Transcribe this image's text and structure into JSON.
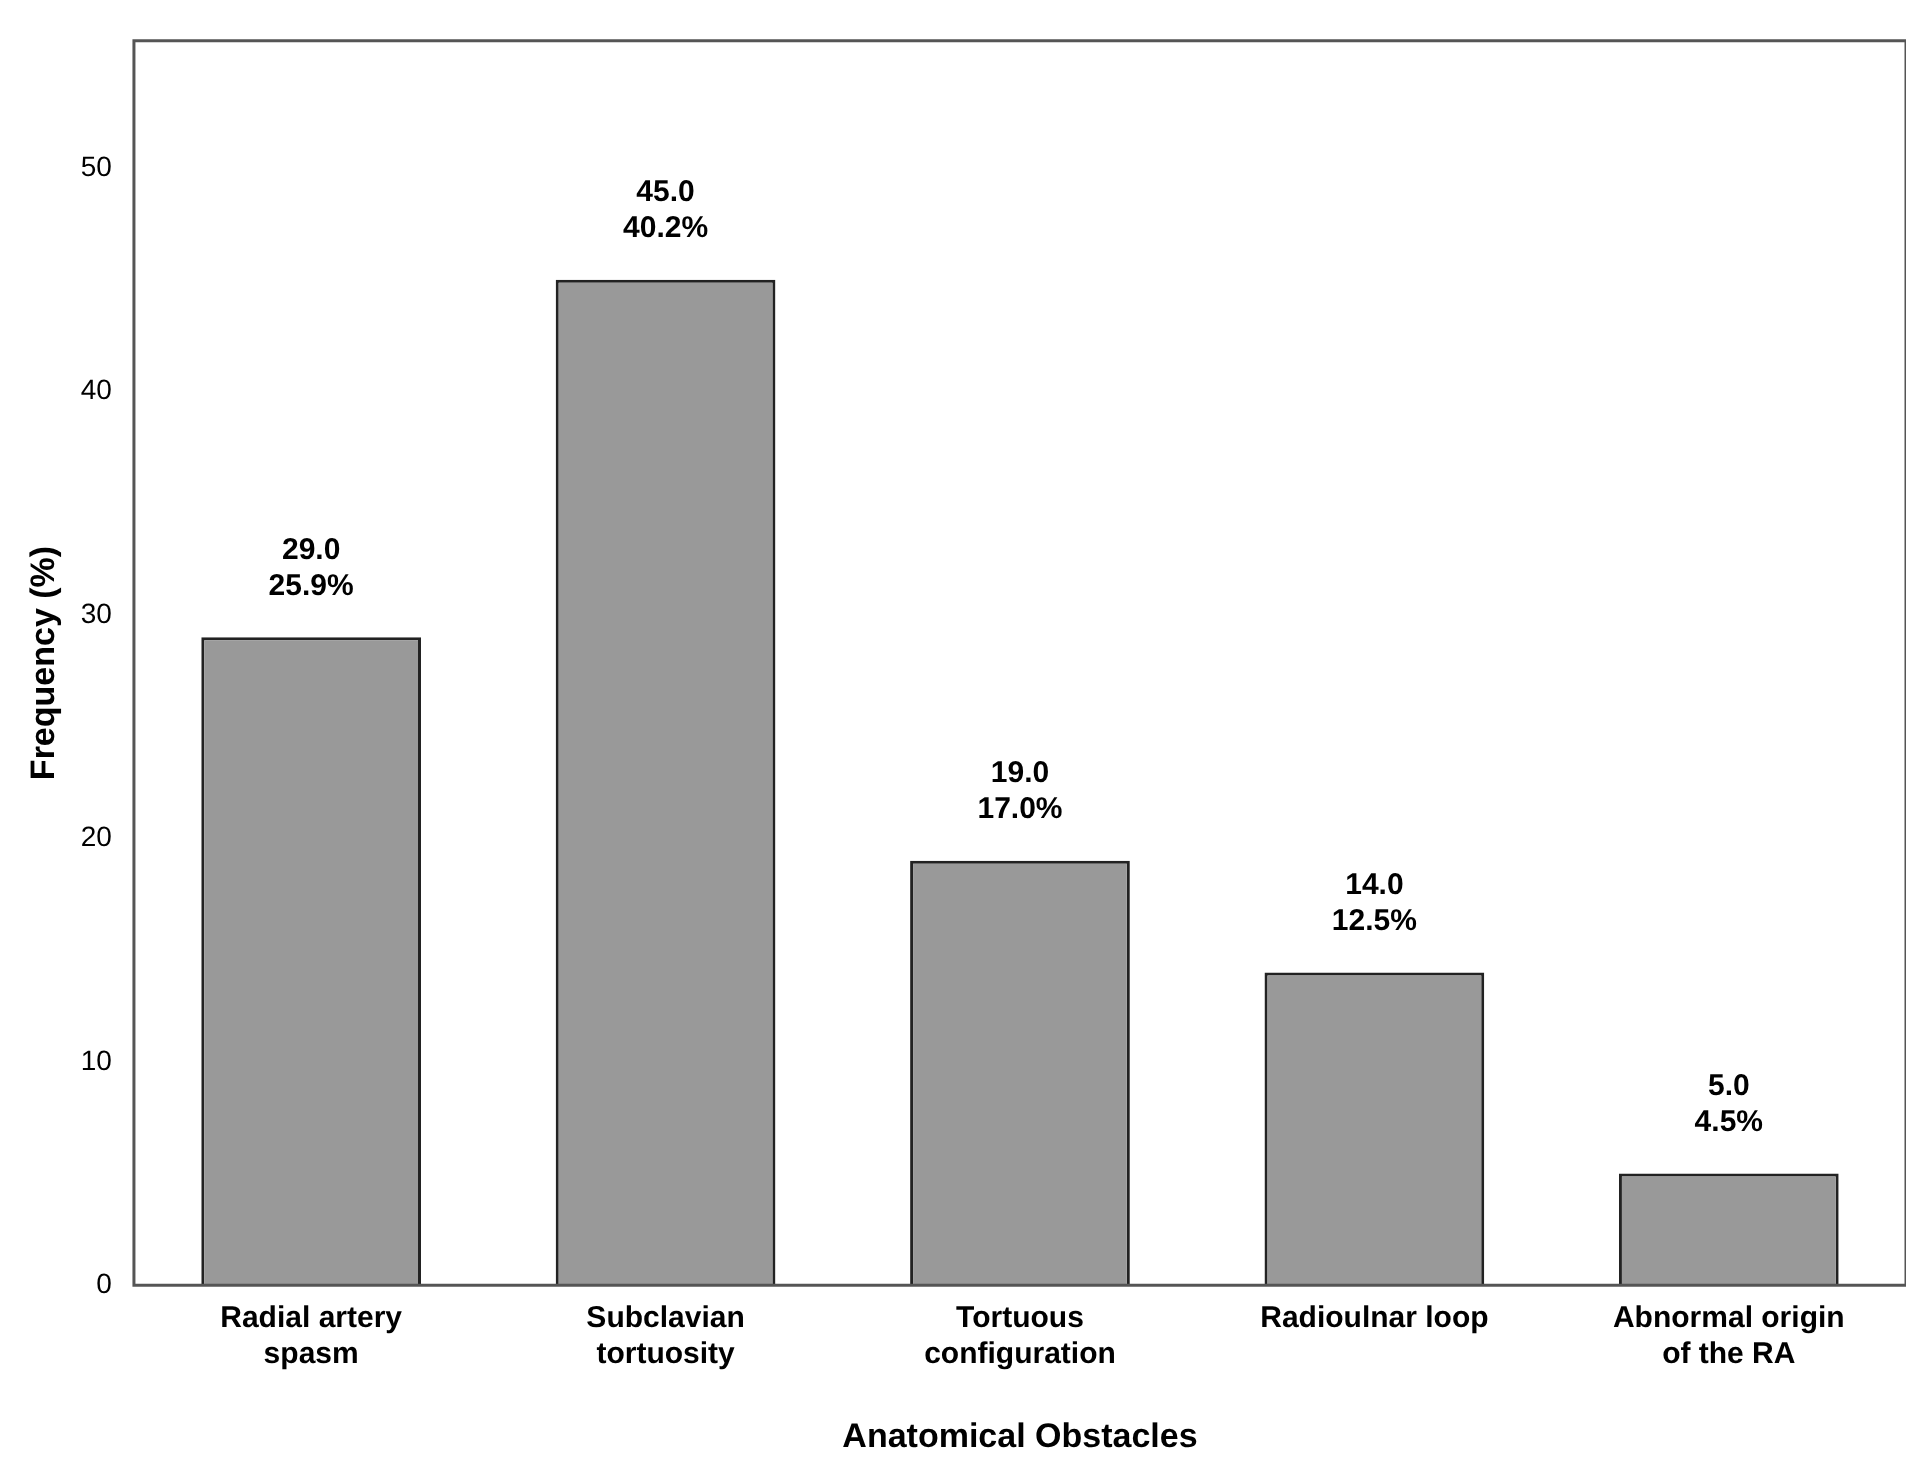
{
  "chart_data": {
    "type": "bar",
    "xlabel": "Anatomical Obstacles",
    "ylabel": "Frequency (%)",
    "categories": [
      "Radial artery spasm",
      "Subclavian tortuosity",
      "Tortuous configuration",
      "Radioulnar loop",
      "Abnormal origin of the RA"
    ],
    "values": [
      29,
      45,
      19,
      14,
      5
    ],
    "value_labels": [
      "29.0\n25.9%",
      "45.0\n40.2%",
      "19.0\n17.0%",
      "14.0\n12.5%",
      "5.0\n4.5%"
    ],
    "color": "#999999",
    "ylim": [
      0,
      55.7
    ],
    "yticks": [
      0,
      10,
      20,
      30,
      40,
      50
    ],
    "grid": false,
    "legend": false
  }
}
